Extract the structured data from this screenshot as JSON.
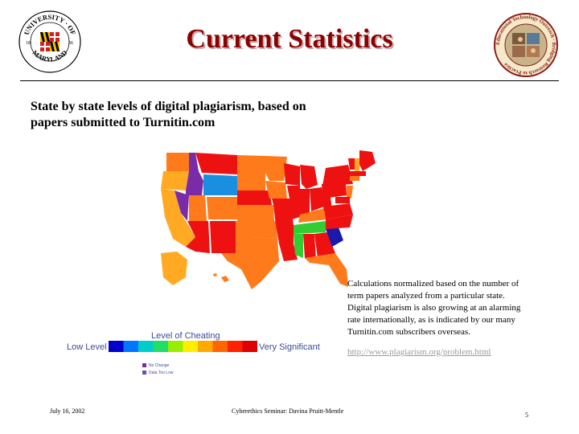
{
  "slide": {
    "title": "Current Statistics",
    "subtitle_line1": "State by state levels of digital plagiarism, based on",
    "subtitle_line2": "papers submitted to Turnitin.com"
  },
  "legend": {
    "title": "Level of Cheating",
    "low": "Low Level",
    "high": "Very Significant",
    "scale_colors": [
      "#0000cc",
      "#0077ff",
      "#00cccc",
      "#22dd66",
      "#99ee00",
      "#ffee00",
      "#ffaa00",
      "#ff6600",
      "#ff2200",
      "#dd0000"
    ],
    "keys": [
      {
        "label": "No Change",
        "color": "#7a2ca8"
      },
      {
        "label": "Data Too Low",
        "color": "#6a4fb8"
      }
    ]
  },
  "note": {
    "line1": "Calculations normalized based on the number of",
    "line2": "term papers analyzed from a particular state.",
    "line3": "Digital plagiarism is also growing at an alarming",
    "line4": "rate internationally, as is indicated by our many",
    "line5": "Turnitin.com subscribers overseas.",
    "link": "http://www.plagiarism.org/problem.html"
  },
  "footer": {
    "date": "July 16, 2002",
    "title": "Cyberethics Seminar: Davina Pruitt-Mentle",
    "page": "5"
  },
  "logos": {
    "left": {
      "line1": "UNIVERSITY",
      "line2": "OF",
      "line3": "MARYLAND",
      "year_left": "18",
      "year_right": "56"
    },
    "right": {
      "text": "Educational Technology Outreach · Bridging Research to Practice"
    }
  },
  "colors": {
    "title": "#8b0000",
    "red": "#ee1111",
    "orange": "#ff7a1a",
    "light_orange": "#ffaa22",
    "purple": "#7a2ca8",
    "blue": "#1a8fe0",
    "green": "#33cc33",
    "navy": "#1a1aaa"
  }
}
